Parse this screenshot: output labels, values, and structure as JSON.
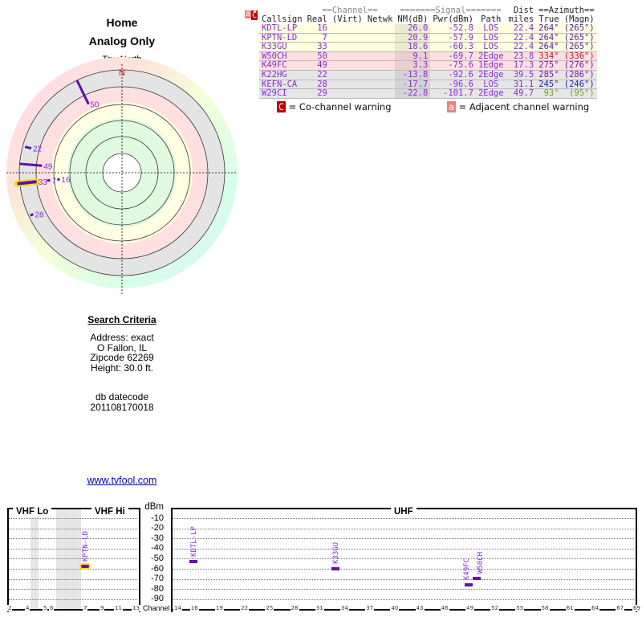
{
  "header": {
    "title": "Home",
    "subtitle": "Analog Only"
  },
  "radar": {
    "north_caption": "TrueNorth",
    "north_letter": "N"
  },
  "table": {
    "group_headers": {
      "channel": "==Channel==",
      "signal": "=======Signal=======",
      "dist": "Dist",
      "azimuth": "==Azimuth=="
    },
    "columns": [
      "Callsign",
      "Real",
      "(Virt)",
      "Netwk",
      "NM(dB)",
      "Pwr(dBm)",
      "Path",
      "miles",
      "True",
      "(Magn)"
    ],
    "rows": [
      {
        "callsign": "KDTL-LP",
        "real": "16",
        "virt": "",
        "netwk": "",
        "nm": "26.0",
        "pwr": "-52.8",
        "path": "LOS",
        "dist": "22.4",
        "az_true": "264°",
        "az_magn": "(265°)",
        "band": "y",
        "warn": "",
        "az_color": "#5a1ab0",
        "azimuth": 264,
        "ch": 16,
        "dbm": -52.8
      },
      {
        "callsign": "KPTN-LD",
        "real": "7",
        "virt": "",
        "netwk": "",
        "nm": "20.9",
        "pwr": "-57.9",
        "path": "LOS",
        "dist": "22.4",
        "az_true": "264°",
        "az_magn": "(265°)",
        "band": "y",
        "warn": "",
        "az_color": "#5a1ab0",
        "azimuth": 264,
        "ch": 7,
        "dbm": -57.9
      },
      {
        "callsign": "K33GU",
        "real": "33",
        "virt": "",
        "netwk": "",
        "nm": "18.6",
        "pwr": "-60.3",
        "path": "LOS",
        "dist": "22.4",
        "az_true": "264°",
        "az_magn": "(265°)",
        "band": "y",
        "warn": "",
        "az_color": "#5a1ab0",
        "azimuth": 264,
        "ch": 33,
        "dbm": -60.3
      },
      {
        "callsign": "W50CH",
        "real": "50",
        "virt": "",
        "netwk": "",
        "nm": "9.1",
        "pwr": "-69.7",
        "path": "2Edge",
        "dist": "23.8",
        "az_true": "334°",
        "az_magn": "(336°)",
        "band": "p",
        "warn": "",
        "az_color": "#d0103a",
        "azimuth": 334,
        "ch": 50,
        "dbm": -69.7
      },
      {
        "callsign": "K49FC",
        "real": "49",
        "virt": "",
        "netwk": "",
        "nm": "3.3",
        "pwr": "-75.6",
        "path": "1Edge",
        "dist": "17.3",
        "az_true": "275°",
        "az_magn": "(276°)",
        "band": "p",
        "warn": "",
        "az_color": "#6a1ab0",
        "azimuth": 275,
        "ch": 49,
        "dbm": -75.6
      },
      {
        "callsign": "K22HG",
        "real": "22",
        "virt": "",
        "netwk": "",
        "nm": "-13.8",
        "pwr": "-92.6",
        "path": "2Edge",
        "dist": "39.5",
        "az_true": "285°",
        "az_magn": "(286°)",
        "band": "g",
        "warn": "aC",
        "az_color": "#7a1ab0",
        "azimuth": 285
      },
      {
        "callsign": "KEFN-CA",
        "real": "28",
        "virt": "",
        "netwk": "",
        "nm": "-17.7",
        "pwr": "-96.6",
        "path": "LOS",
        "dist": "31.1",
        "az_true": "245°",
        "az_magn": "(246°)",
        "band": "g",
        "warn": "C",
        "az_color": "#2020c0",
        "azimuth": 245
      },
      {
        "callsign": "W29CI",
        "real": "29",
        "virt": "",
        "netwk": "",
        "nm": "-22.8",
        "pwr": "-101.7",
        "path": "2Edge",
        "dist": "49.7",
        "az_true": "93°",
        "az_magn": "(95°)",
        "band": "g",
        "warn": "C",
        "az_color": "#6aa030",
        "azimuth": 93
      }
    ],
    "legend": {
      "co_icon": "C",
      "co_label": "= Co-channel warning",
      "adj_icon": "a",
      "adj_label": "= Adjacent channel warning"
    }
  },
  "search": {
    "title": "Search Criteria",
    "address": "Address: exact",
    "city": "O Fallon, IL",
    "zip": "Zipcode 62269",
    "height": "Height: 30.0 ft.",
    "db_label": "db datecode",
    "db_value": "201108170018",
    "link": "www.tvfool.com"
  },
  "chart_data": {
    "type": "scatter",
    "bands": [
      "VHF Lo",
      "VHF Hi",
      "UHF"
    ],
    "ylabel": "dBm",
    "xlabel": "Channel",
    "yticks": [
      "-10",
      "-20",
      "-30",
      "-40",
      "-50",
      "-60",
      "-70",
      "-80",
      "-90"
    ],
    "vhf_ticks": [
      "2",
      "4",
      "5",
      "6",
      "7",
      "9",
      "11",
      "13"
    ],
    "uhf_ticks": [
      "14",
      "16",
      "19",
      "22",
      "25",
      "28",
      "31",
      "34",
      "37",
      "40",
      "43",
      "46",
      "49",
      "52",
      "55",
      "58",
      "61",
      "64",
      "67",
      "69"
    ],
    "ylim": [
      -95,
      0
    ],
    "points": [
      {
        "label": "KPTN-LD",
        "channel": 7,
        "dbm": -57.9,
        "highlight": true
      },
      {
        "label": "KDTL-LP",
        "channel": 16,
        "dbm": -52.8
      },
      {
        "label": "K33GU",
        "channel": 33,
        "dbm": -60.3
      },
      {
        "label": "K49FC",
        "channel": 49,
        "dbm": -75.6
      },
      {
        "label": "W50CH",
        "channel": 50,
        "dbm": -69.7
      }
    ]
  }
}
